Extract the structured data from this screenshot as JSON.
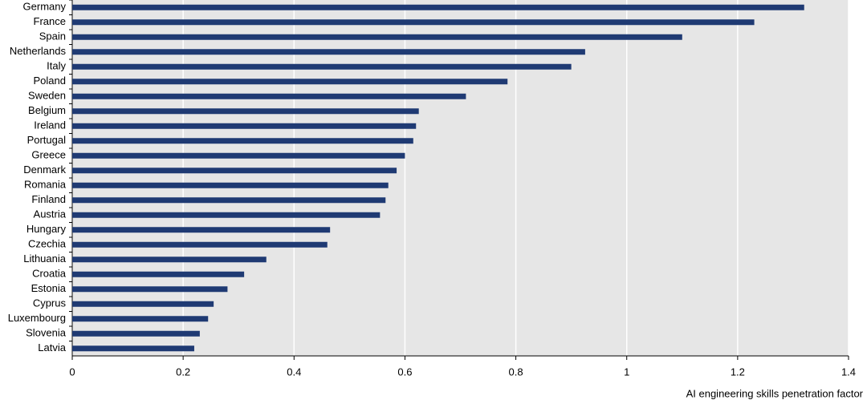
{
  "chart_data": {
    "type": "bar",
    "orientation": "horizontal",
    "x_label": "AI engineering skills penetration factor",
    "categories": [
      "Germany",
      "France",
      "Spain",
      "Netherlands",
      "Italy",
      "Poland",
      "Sweden",
      "Belgium",
      "Ireland",
      "Portugal",
      "Greece",
      "Denmark",
      "Romania",
      "Finland",
      "Austria",
      "Hungary",
      "Czechia",
      "Lithuania",
      "Croatia",
      "Estonia",
      "Cyprus",
      "Luxembourg",
      "Slovenia",
      "Latvia"
    ],
    "values": [
      1.32,
      1.23,
      1.1,
      0.925,
      0.9,
      0.785,
      0.71,
      0.625,
      0.62,
      0.615,
      0.6,
      0.585,
      0.57,
      0.565,
      0.555,
      0.465,
      0.46,
      0.35,
      0.31,
      0.28,
      0.255,
      0.245,
      0.23,
      0.22
    ],
    "color": "#1f3a73",
    "xlim": [
      0,
      1.4
    ],
    "xticks": [
      0,
      0.2,
      0.4,
      0.6,
      0.8,
      1,
      1.2,
      1.4
    ],
    "grid": true
  }
}
